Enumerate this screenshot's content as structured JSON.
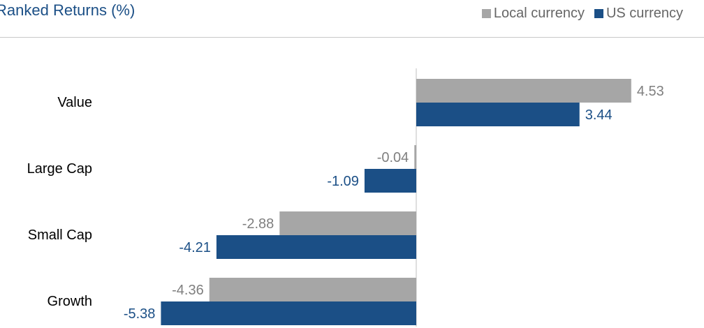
{
  "title": "Ranked Returns (%)",
  "colors": {
    "local": "#a6a6a6",
    "us": "#1b4f86",
    "title": "#1b4f86"
  },
  "chart_data": {
    "type": "bar",
    "orientation": "horizontal",
    "title": "Ranked Returns (%)",
    "categories": [
      "Value",
      "Large Cap",
      "Small Cap",
      "Growth"
    ],
    "series": [
      {
        "name": "Local currency",
        "values": [
          4.53,
          -0.04,
          -2.88,
          -4.36
        ]
      },
      {
        "name": "US currency",
        "values": [
          3.44,
          -1.09,
          -4.21,
          -5.38
        ]
      }
    ],
    "xlim": [
      -5.38,
      4.53
    ],
    "grid": false,
    "legend": "top-right"
  }
}
